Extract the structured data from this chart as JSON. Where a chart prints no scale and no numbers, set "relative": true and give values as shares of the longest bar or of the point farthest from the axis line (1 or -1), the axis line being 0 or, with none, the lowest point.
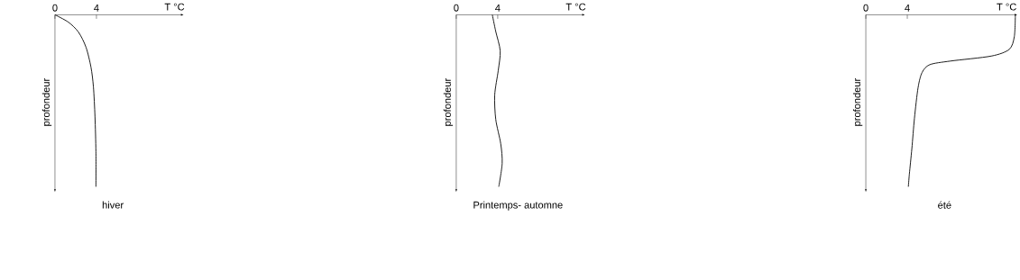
{
  "chart_data": [
    {
      "type": "line",
      "title": "hiver",
      "xlabel": "T °C",
      "ylabel": "profondeur",
      "relative": true,
      "xlim": [
        0,
        12.4
      ],
      "xticks": [
        0,
        4
      ],
      "color": "#000000",
      "x": [
        0,
        1.3,
        2.27,
        2.99,
        3.47,
        3.71,
        3.86,
        3.95,
        3.95
      ],
      "values": [
        0,
        -0.043,
        -0.101,
        -0.188,
        -0.304,
        -0.42,
        -0.594,
        -0.797,
        -1
      ]
    },
    {
      "type": "line",
      "title": "Printemps- automne",
      "xlabel": "T °C",
      "ylabel": "profondeur",
      "relative": true,
      "xlim": [
        0,
        12.4
      ],
      "xticks": [
        0,
        4
      ],
      "color": "#000000",
      "x": [
        3.48,
        3.81,
        4.24,
        4.05,
        3.71,
        3.81,
        4.29,
        4.43,
        4.1
      ],
      "values": [
        0,
        -0.097,
        -0.21,
        -0.324,
        -0.466,
        -0.608,
        -0.75,
        -0.864,
        -1
      ]
    },
    {
      "type": "line",
      "title": "été",
      "xlabel": "T °C",
      "ylabel": "profondeur",
      "relative": true,
      "xlim": [
        0,
        14.6
      ],
      "xticks": [
        0,
        4
      ],
      "color": "#000000",
      "x": [
        14.42,
        14.32,
        13.83,
        12.1,
        8.15,
        6.17,
        5.43,
        5.04,
        4.69,
        4.44,
        4.2,
        4.1
      ],
      "values": [
        0,
        -0.127,
        -0.201,
        -0.24,
        -0.269,
        -0.29,
        -0.335,
        -0.423,
        -0.601,
        -0.778,
        -0.926,
        -1
      ]
    }
  ]
}
